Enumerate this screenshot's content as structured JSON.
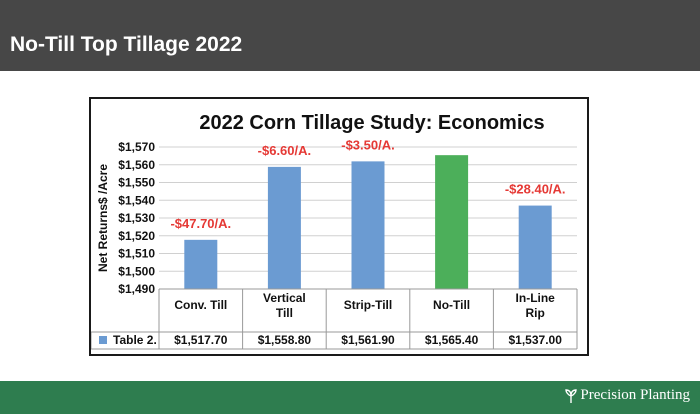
{
  "header": {
    "title": "No-Till Top Tillage 2022"
  },
  "footer": {
    "brand": "Precision Planting",
    "brand_mark": "sprout-logo"
  },
  "colors": {
    "header_bg": "#474747",
    "footer_bg": "#2e7d4f",
    "bar": "#6b9bd2",
    "highlight_bar": "#4caf5a",
    "diff_label": "#e53935"
  },
  "chart_data": {
    "type": "bar",
    "title": "2022 Corn Tillage Study: Economics",
    "ylabel": "Net Returns$ /Acre",
    "xlabel": "",
    "ylim": [
      1490,
      1570
    ],
    "yticks": [
      "$1,490",
      "$1,500",
      "$1,510",
      "$1,520",
      "$1,530",
      "$1,540",
      "$1,550",
      "$1,560",
      "$1,570"
    ],
    "categories": [
      "Conv. Till",
      "Vertical Till",
      "Strip-Till",
      "No-Till",
      "In-Line Rip"
    ],
    "series": [
      {
        "name": "Table 2.",
        "values": [
          1517.7,
          1558.8,
          1561.9,
          1565.4,
          1537.0
        ],
        "value_labels": [
          "$1,517.70",
          "$1,558.80",
          "$1,561.90",
          "$1,565.40",
          "$1,537.00"
        ]
      }
    ],
    "annotations": [
      "-$47.70/A.",
      "-$6.60/A.",
      "-$3.50/A.",
      "",
      "-$28.40/A."
    ],
    "highlight_category": "No-Till",
    "grid": true,
    "legend": "data-table"
  }
}
